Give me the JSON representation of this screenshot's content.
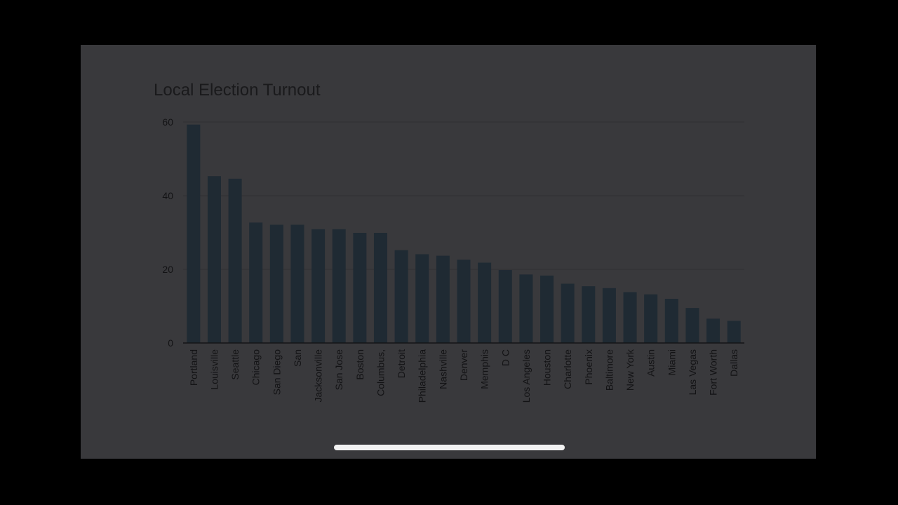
{
  "colors": {
    "background": "#000000",
    "slide": "#39393c",
    "bar": "#1f2a33",
    "text": "#131315",
    "home_indicator": "#f2f2f2"
  },
  "chart_data": {
    "type": "bar",
    "title": "Local Election Turnout",
    "xlabel": "",
    "ylabel": "",
    "ylim": [
      0,
      60
    ],
    "yticks": [
      0,
      20,
      40,
      60
    ],
    "grid": true,
    "legend": "none",
    "categories": [
      "Portland",
      "Louisville",
      "Seattle",
      "Chicago",
      "San Diego",
      "San",
      "Jacksonville",
      "San Jose",
      "Boston",
      "Columbus,",
      "Detroit",
      "Philadelphia",
      "Nashville",
      "Denver",
      "Memphis",
      "D C",
      "Los Angeles",
      "Houston",
      "Charlotte",
      "Phoenix",
      "Baltimore",
      "New York",
      "Austin",
      "Miami",
      "Las Vegas",
      "Fort Worth",
      "Dallas"
    ],
    "values": [
      59.3,
      45.3,
      44.6,
      32.7,
      32.1,
      32.1,
      30.9,
      30.9,
      29.9,
      29.9,
      25.2,
      24.1,
      23.7,
      22.6,
      21.8,
      19.8,
      18.6,
      18.3,
      16.1,
      15.4,
      14.9,
      13.8,
      13.2,
      12.0,
      9.5,
      6.6,
      6.0
    ]
  }
}
